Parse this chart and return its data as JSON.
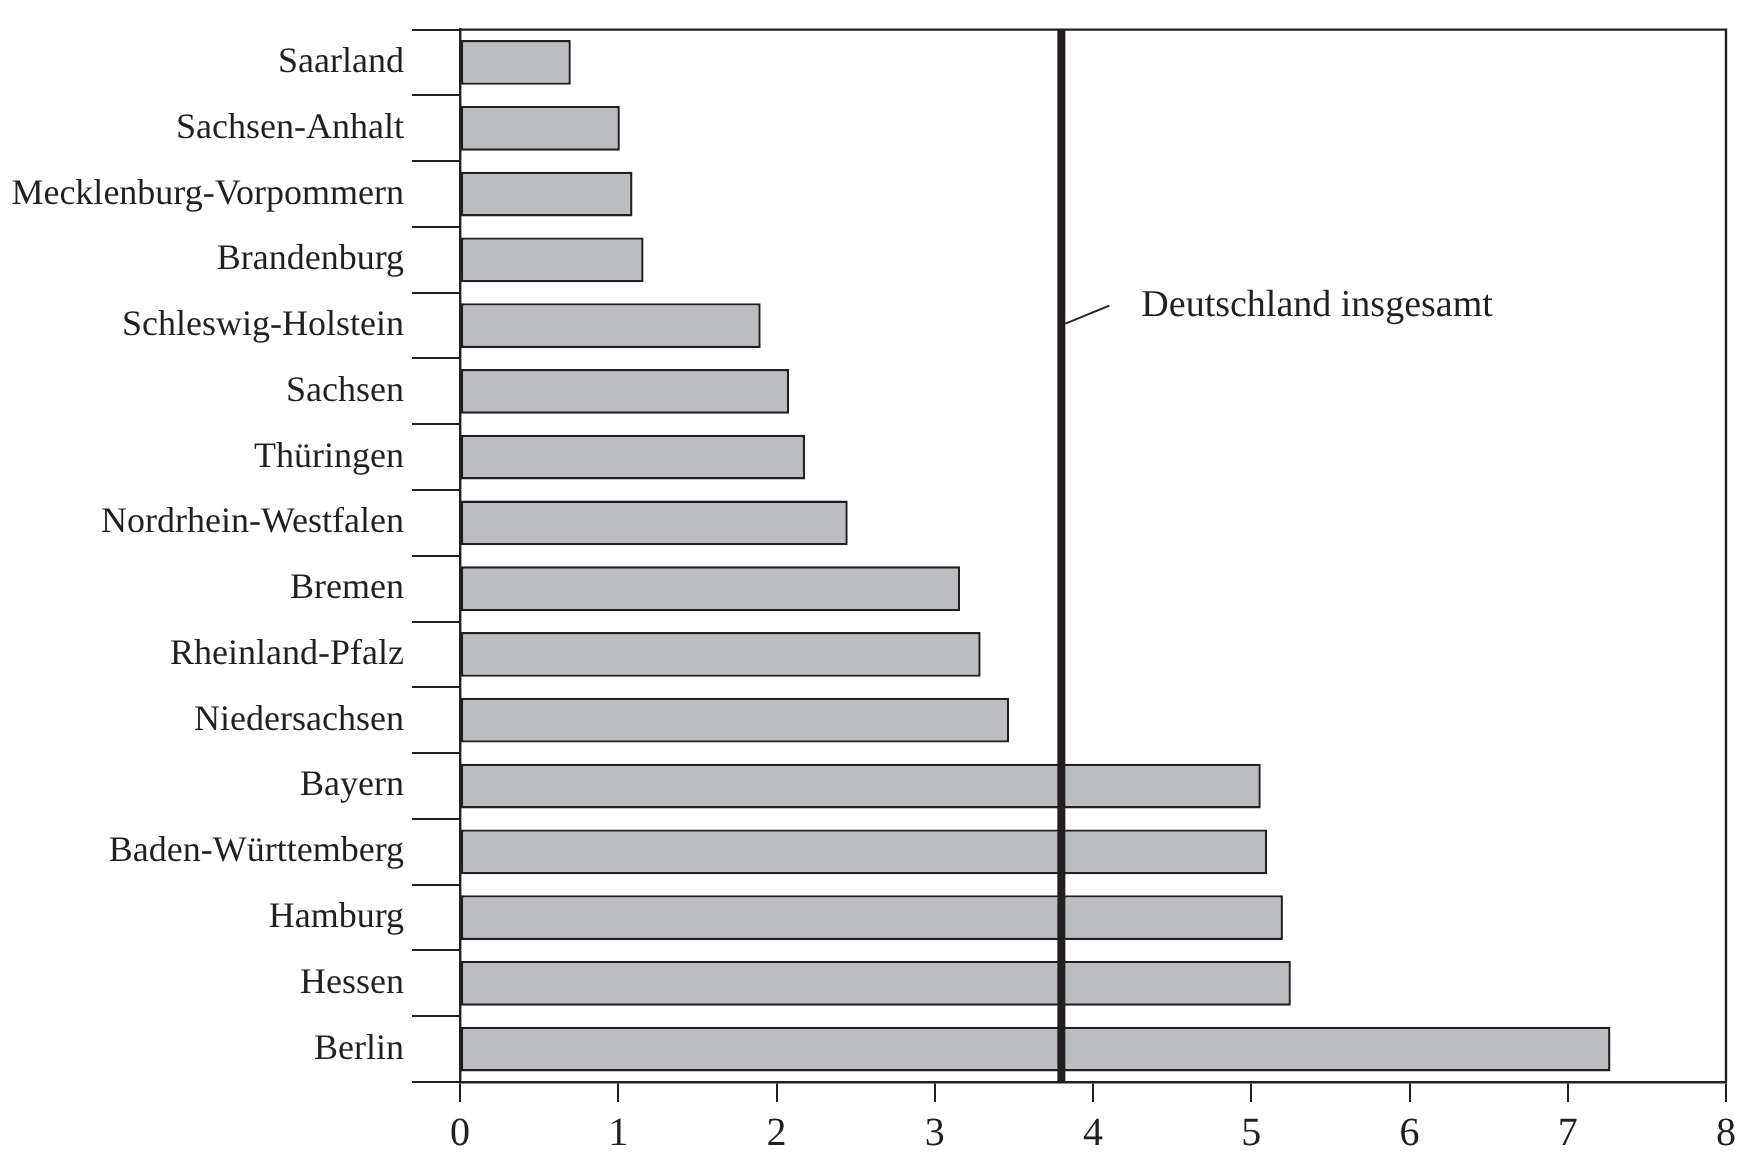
{
  "chart_data": {
    "type": "bar",
    "orientation": "horizontal",
    "categories": [
      "Saarland",
      "Sachsen-Anhalt",
      "Mecklenburg-Vorpommern",
      "Brandenburg",
      "Schleswig-Holstein",
      "Sachsen",
      "Thüringen",
      "Nordrhein-Westfalen",
      "Bremen",
      "Rheinland-Pfalz",
      "Niedersachsen",
      "Bayern",
      "Baden-Württemberg",
      "Hamburg",
      "Hessen",
      "Berlin"
    ],
    "values": [
      0.7,
      1.01,
      1.09,
      1.16,
      1.9,
      2.08,
      2.18,
      2.45,
      3.16,
      3.29,
      3.47,
      5.06,
      5.1,
      5.2,
      5.25,
      7.27
    ],
    "color": "#bcbdc0",
    "xlim": [
      0,
      8
    ],
    "xticks": [
      0,
      1,
      2,
      3,
      4,
      5,
      6,
      7,
      8
    ],
    "grid": false,
    "legend": false,
    "ref_lines": [
      {
        "axis": "x",
        "value": 3.8,
        "label": "Deutschland insgesamt",
        "color": "#231f20"
      }
    ]
  }
}
